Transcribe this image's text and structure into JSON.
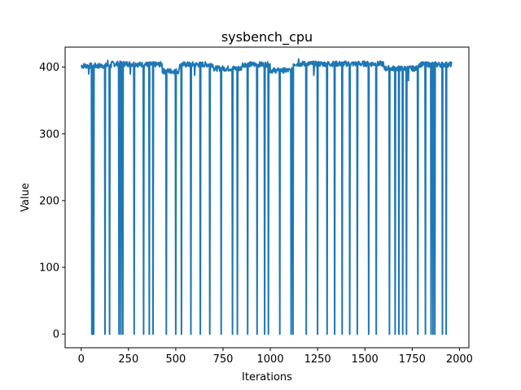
{
  "chart_data": {
    "type": "line",
    "title": "sysbench_cpu",
    "xlabel": "Iterations",
    "ylabel": "Value",
    "xlim": [
      -85,
      2050
    ],
    "ylim": [
      -20.5,
      430
    ],
    "xticks": [
      0,
      250,
      500,
      750,
      1000,
      1250,
      1500,
      1750,
      2000
    ],
    "yticks": [
      0,
      100,
      200,
      300,
      400
    ],
    "grid": false,
    "line_color": "#1f77b4",
    "series": [
      {
        "baseline_segments": [
          {
            "x_start": 0,
            "x_end": 160,
            "level": 402
          },
          {
            "x_start": 160,
            "x_end": 300,
            "level": 405
          },
          {
            "x_start": 300,
            "x_end": 430,
            "level": 404
          },
          {
            "x_start": 430,
            "x_end": 520,
            "level": 394
          },
          {
            "x_start": 520,
            "x_end": 700,
            "level": 404
          },
          {
            "x_start": 700,
            "x_end": 850,
            "level": 398
          },
          {
            "x_start": 850,
            "x_end": 1000,
            "level": 404
          },
          {
            "x_start": 1000,
            "x_end": 1120,
            "level": 395
          },
          {
            "x_start": 1120,
            "x_end": 1600,
            "level": 405
          },
          {
            "x_start": 1600,
            "x_end": 1780,
            "level": 398
          },
          {
            "x_start": 1780,
            "x_end": 1960,
            "level": 404
          }
        ],
        "zero_drops": [
          55,
          60,
          65,
          125,
          150,
          200,
          210,
          220,
          280,
          330,
          360,
          380,
          450,
          500,
          530,
          580,
          630,
          680,
          740,
          800,
          825,
          880,
          930,
          970,
          990,
          1050,
          1110,
          1120,
          1190,
          1250,
          1300,
          1340,
          1380,
          1420,
          1460,
          1520,
          1560,
          1630,
          1660,
          1680,
          1700,
          1720,
          1780,
          1820,
          1850,
          1860,
          1870,
          1910,
          1930
        ],
        "dips": [
          {
            "x": 1645,
            "value": 330
          },
          {
            "x": 1660,
            "value": 370
          },
          {
            "x": 1730,
            "value": 380
          },
          {
            "x": 40,
            "value": 390
          },
          {
            "x": 260,
            "value": 390
          },
          {
            "x": 600,
            "value": 388
          },
          {
            "x": 1230,
            "value": 388
          }
        ],
        "spikes": [
          {
            "x": 140,
            "value": 410
          },
          {
            "x": 1150,
            "value": 412
          }
        ],
        "x_start": 0,
        "x_end": 1960
      }
    ]
  }
}
